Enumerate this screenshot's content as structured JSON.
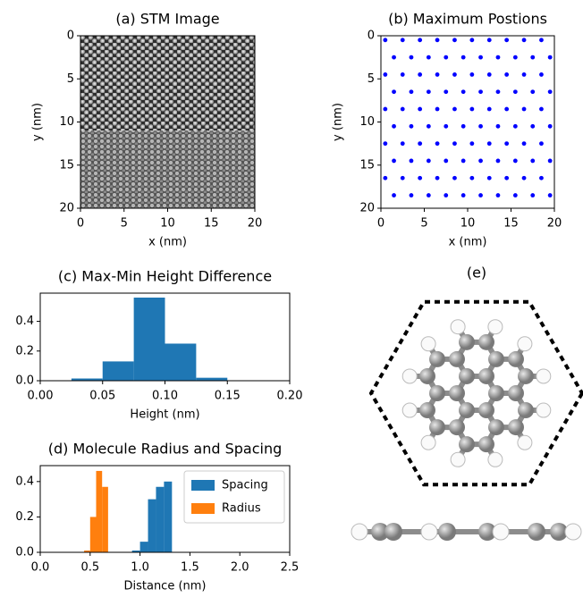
{
  "chart_data": [
    {
      "type": "image",
      "title": "(a) STM Image",
      "xlabel": "x (nm)",
      "ylabel": "y (nm)",
      "xlim": [
        0,
        20
      ],
      "ylim": [
        20,
        0
      ],
      "xticks": [
        0,
        5,
        10,
        15,
        20
      ],
      "yticks": [
        0,
        5,
        10,
        15,
        20
      ]
    },
    {
      "type": "scatter",
      "title": "(b) Maximum Postions",
      "xlabel": "x (nm)",
      "ylabel": "y (nm)",
      "xlim": [
        0,
        20
      ],
      "ylim": [
        20,
        0
      ],
      "xticks": [
        0,
        5,
        10,
        15,
        20
      ],
      "yticks": [
        0,
        5,
        10,
        15,
        20
      ],
      "color": "#0000ff",
      "x": [
        0.5,
        2.5,
        4.5,
        6.5,
        8.5,
        10.5,
        12.5,
        14.5,
        16.5,
        18.5,
        1.5,
        3.5,
        5.5,
        7.5,
        9.5,
        11.5,
        13.5,
        15.5,
        17.5,
        19.5,
        0.5,
        2.5,
        4.5,
        6.5,
        8.5,
        10.5,
        12.5,
        14.5,
        16.5,
        18.5,
        1.5,
        3.5,
        5.5,
        7.5,
        9.5,
        11.5,
        13.5,
        15.5,
        17.5,
        19.5,
        0.5,
        2.5,
        4.5,
        6.5,
        8.5,
        10.5,
        12.5,
        14.5,
        16.5,
        18.5,
        1.5,
        3.5,
        5.5,
        7.5,
        9.5,
        11.5,
        13.5,
        15.5,
        17.5,
        19.5,
        0.5,
        2.5,
        4.5,
        6.5,
        8.5,
        10.5,
        12.5,
        14.5,
        16.5,
        18.5,
        1.5,
        3.5,
        5.5,
        7.5,
        9.5,
        11.5,
        13.5,
        15.5,
        17.5,
        19.5,
        0.5,
        2.5,
        4.5,
        6.5,
        8.5,
        10.5,
        12.5,
        14.5,
        16.5,
        18.5,
        1.5,
        3.5,
        5.5,
        7.5,
        9.5,
        11.5,
        13.5,
        15.5,
        17.5,
        19.5
      ],
      "y": [
        0.5,
        0.5,
        0.5,
        0.5,
        0.5,
        0.5,
        0.5,
        0.5,
        0.5,
        0.5,
        2.5,
        2.5,
        2.5,
        2.5,
        2.5,
        2.5,
        2.5,
        2.5,
        2.5,
        2.5,
        4.5,
        4.5,
        4.5,
        4.5,
        4.5,
        4.5,
        4.5,
        4.5,
        4.5,
        4.5,
        6.5,
        6.5,
        6.5,
        6.5,
        6.5,
        6.5,
        6.5,
        6.5,
        6.5,
        6.5,
        8.5,
        8.5,
        8.5,
        8.5,
        8.5,
        8.5,
        8.5,
        8.5,
        8.5,
        8.5,
        10.5,
        10.5,
        10.5,
        10.5,
        10.5,
        10.5,
        10.5,
        10.5,
        10.5,
        10.5,
        12.5,
        12.5,
        12.5,
        12.5,
        12.5,
        12.5,
        12.5,
        12.5,
        12.5,
        12.5,
        14.5,
        14.5,
        14.5,
        14.5,
        14.5,
        14.5,
        14.5,
        14.5,
        14.5,
        14.5,
        16.5,
        16.5,
        16.5,
        16.5,
        16.5,
        16.5,
        16.5,
        16.5,
        16.5,
        16.5,
        18.5,
        18.5,
        18.5,
        18.5,
        18.5,
        18.5,
        18.5,
        18.5,
        18.5,
        18.5
      ]
    },
    {
      "type": "histogram",
      "title": "(c) Max-Min Height Difference",
      "xlabel": "Height (nm)",
      "xlim": [
        0,
        0.2
      ],
      "ylim": [
        0,
        0.59
      ],
      "xticks": [
        {
          "value": 0,
          "label": "0.00"
        },
        0.05,
        {
          "value": 0.1,
          "label": "0.10"
        },
        0.15,
        {
          "value": 0.2,
          "label": "0.20"
        }
      ],
      "yticks": [
        {
          "value": 0,
          "label": "0.0"
        },
        0.2,
        0.4
      ],
      "series": [
        {
          "color": "#1f77b4",
          "bins": [
            0.025,
            0.05,
            0.075,
            0.1,
            0.125,
            0.15
          ],
          "values": [
            0.015,
            0.13,
            0.56,
            0.25,
            0.02
          ]
        }
      ]
    },
    {
      "type": "histogram",
      "title": "(d) Molecule Radius and Spacing",
      "xlabel": "Distance (nm)",
      "xlim": [
        0,
        2.5
      ],
      "ylim": [
        0,
        0.49
      ],
      "legend": "upper right",
      "xticks": [
        {
          "value": 0,
          "label": "0.0"
        },
        0.5,
        {
          "value": 1,
          "label": "1.0"
        },
        1.5,
        {
          "value": 2,
          "label": "2.0"
        },
        2.5
      ],
      "yticks": [
        {
          "value": 0,
          "label": "0.0"
        },
        0.2,
        0.4
      ],
      "series": [
        {
          "name": "Spacing",
          "color": "#1f77b4",
          "bins": [
            0.92,
            1.0,
            1.08,
            1.16,
            1.24,
            1.32
          ],
          "values": [
            0.01,
            0.06,
            0.3,
            0.37,
            0.4
          ]
        },
        {
          "name": "Radius",
          "color": "#ff7f0e",
          "bins": [
            0.44,
            0.5,
            0.56,
            0.62,
            0.68
          ],
          "values": [
            0.01,
            0.2,
            0.46,
            0.37
          ]
        }
      ]
    }
  ],
  "diagram": {
    "title": "(e)"
  }
}
